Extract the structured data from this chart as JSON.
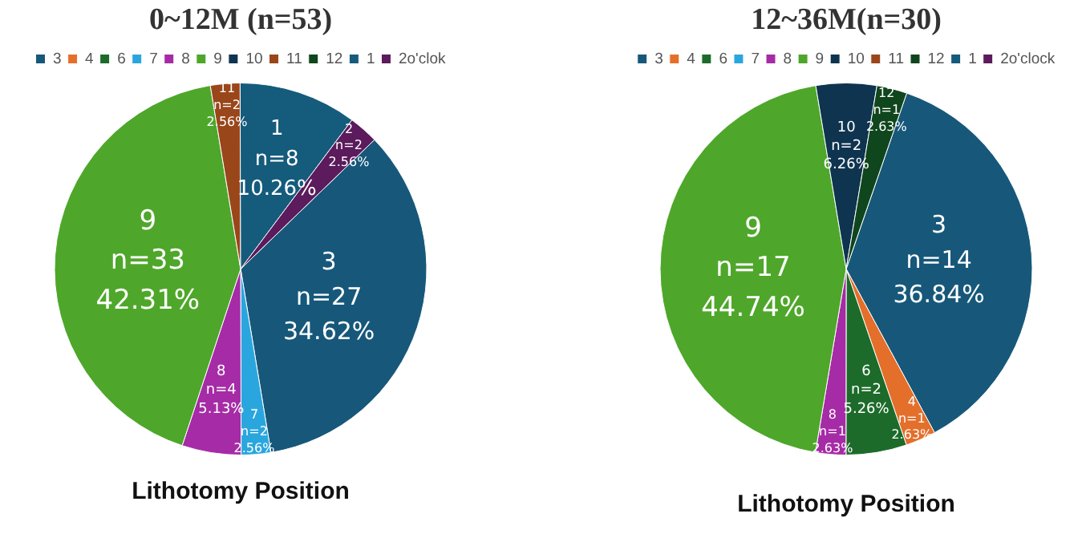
{
  "chart_data": [
    {
      "type": "pie",
      "title": "0~12M (n=53)",
      "legend": "top",
      "categories": [
        "3",
        "4",
        "6",
        "7",
        "8",
        "9",
        "10",
        "11",
        "12",
        "1",
        "2o'clok"
      ],
      "values": [
        27,
        0,
        0,
        2,
        4,
        33,
        0,
        2,
        0,
        8,
        2
      ],
      "value_labels": [
        "3\nn=27\n34.62%",
        null,
        null,
        "7\nn=2\n2.56%",
        "8\nn=4\n5.13%",
        "9\nn=33\n42.31%",
        null,
        "11\nn=2\n2.56%",
        null,
        "1\nn=8\n10.26%",
        "2\nn=2\n2.56%"
      ],
      "colors": [
        "#17587a",
        "#e46f2b",
        "#1d6b2a",
        "#2aa6de",
        "#a62ba6",
        "#4ea72a",
        "#0e3450",
        "#9a461b",
        "#10461d",
        "#155b7c",
        "#5b1b5c"
      ],
      "annotations": [
        "Lithotomy Position"
      ]
    },
    {
      "type": "pie",
      "title": "12~36M(n=30)",
      "legend": "top",
      "categories": [
        "3",
        "4",
        "6",
        "7",
        "8",
        "9",
        "10",
        "11",
        "12",
        "1",
        "2o'clock"
      ],
      "values": [
        14,
        1,
        2,
        0,
        1,
        17,
        2,
        0,
        1,
        0,
        0
      ],
      "value_labels": [
        "3\nn=14\n36.84%",
        "4\nn=1\n2.63%",
        "6\nn=2\n5.26%",
        null,
        "8\nn=1\n2.63%",
        "9\nn=17\n44.74%",
        "10\nn=2\n6.26%",
        null,
        "12\nn=1\n2.63%",
        null,
        null
      ],
      "colors": [
        "#17587a",
        "#e46f2b",
        "#1d6b2a",
        "#2aa6de",
        "#a62ba6",
        "#4ea72a",
        "#0e3450",
        "#9a461b",
        "#10461d",
        "#155b7c",
        "#5b1b5c"
      ],
      "annotations": [
        "Lithotomy Position"
      ]
    }
  ]
}
